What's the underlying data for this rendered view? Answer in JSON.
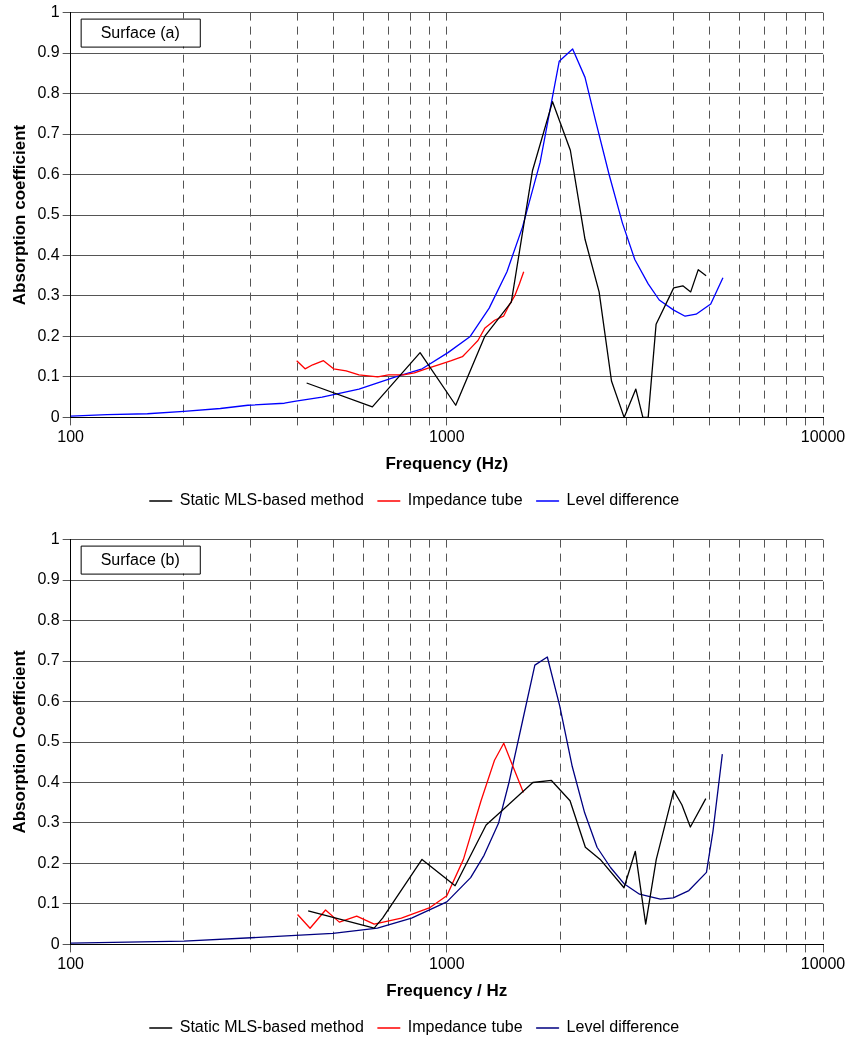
{
  "chart_data": [
    {
      "type": "line",
      "xlabel": "Frequency (Hz)",
      "ylabel": "Absorption coefficient",
      "annotations": [
        "Surface (a)"
      ],
      "log": "x",
      "grid": true,
      "legend": "bottom",
      "marker": "none",
      "line_style": "solid",
      "xlim": [
        100,
        10000
      ],
      "xticks": [
        100,
        {
          "value": 200,
          "label": null
        },
        {
          "value": 300,
          "label": null
        },
        {
          "value": 400,
          "label": null
        },
        {
          "value": 500,
          "label": null
        },
        {
          "value": 600,
          "label": null
        },
        {
          "value": 700,
          "label": null
        },
        {
          "value": 800,
          "label": null
        },
        {
          "value": 900,
          "label": null
        },
        1000,
        {
          "value": 2000,
          "label": null
        },
        {
          "value": 3000,
          "label": null
        },
        {
          "value": 4000,
          "label": null
        },
        {
          "value": 5000,
          "label": null
        },
        {
          "value": 6000,
          "label": null
        },
        {
          "value": 7000,
          "label": null
        },
        {
          "value": 8000,
          "label": null
        },
        {
          "value": 9000,
          "label": null
        },
        10000
      ],
      "ylim": [
        0,
        1
      ],
      "yticks": [
        0,
        0.1,
        0.2,
        0.3,
        0.4,
        0.5,
        0.6,
        0.7,
        0.8,
        0.9,
        1
      ],
      "series": [
        {
          "name": "Static MLS-based method",
          "color": "#000000",
          "x": [
            424,
            634,
            849,
            1056,
            1261,
            1484,
            1690,
            1910,
            2130,
            2330,
            2540,
            2740,
            2960,
            3180,
            3320,
            3430,
            3600,
            4010,
            4240,
            4450,
            4660,
            4890
          ],
          "values": [
            0.085,
            0.026,
            0.16,
            0.03,
            0.2,
            0.285,
            0.61,
            0.78,
            0.66,
            0.44,
            0.31,
            0.09,
            0,
            0.07,
            0,
            0,
            0.23,
            0.32,
            0.325,
            0.31,
            0.365,
            0.35
          ]
        },
        {
          "name": "Impedance tube",
          "color": "#ff0000",
          "x": [
            399,
            420,
            440,
            470,
            500,
            540,
            584,
            655,
            700,
            767,
            820,
            880,
            950,
            1028,
            1100,
            1154,
            1210,
            1261,
            1340,
            1415,
            1470,
            1515,
            1560,
            1601
          ],
          "values": [
            0.14,
            0.12,
            0.13,
            0.14,
            0.12,
            0.115,
            0.105,
            0.1,
            0.105,
            0.105,
            0.11,
            0.12,
            0.13,
            0.14,
            0.15,
            0.17,
            0.19,
            0.22,
            0.24,
            0.25,
            0.28,
            0.3,
            0.33,
            0.36
          ]
        },
        {
          "name": "Level difference",
          "color": "#0000ff",
          "x": [
            100,
            125,
            160,
            200,
            250,
            296,
            370,
            397,
            466,
            584,
            731,
            860,
            1007,
            1154,
            1296,
            1445,
            1589,
            1770,
            1990,
            2160,
            2330,
            2490,
            2700,
            2930,
            3160,
            3430,
            3670,
            4010,
            4300,
            4600,
            5030,
            5420
          ],
          "values": [
            0.003,
            0.007,
            0.009,
            0.015,
            0.022,
            0.03,
            0.035,
            0.04,
            0.05,
            0.07,
            0.1,
            0.12,
            0.16,
            0.2,
            0.27,
            0.36,
            0.47,
            0.63,
            0.88,
            0.91,
            0.84,
            0.73,
            0.6,
            0.48,
            0.39,
            0.33,
            0.29,
            0.265,
            0.25,
            0.255,
            0.28,
            0.345
          ]
        }
      ]
    },
    {
      "type": "line",
      "xlabel": "Frequency / Hz",
      "ylabel": "Absorption Coefficient",
      "annotations": [
        "Surface (b)"
      ],
      "log": "x",
      "grid": true,
      "legend": "bottom",
      "marker": "none",
      "line_style": "solid",
      "xlim": [
        100,
        10000
      ],
      "xticks": [
        100,
        {
          "value": 200,
          "label": null
        },
        {
          "value": 300,
          "label": null
        },
        {
          "value": 400,
          "label": null
        },
        {
          "value": 500,
          "label": null
        },
        {
          "value": 600,
          "label": null
        },
        {
          "value": 700,
          "label": null
        },
        {
          "value": 800,
          "label": null
        },
        {
          "value": 900,
          "label": null
        },
        1000,
        {
          "value": 2000,
          "label": null
        },
        {
          "value": 3000,
          "label": null
        },
        {
          "value": 4000,
          "label": null
        },
        {
          "value": 5000,
          "label": null
        },
        {
          "value": 6000,
          "label": null
        },
        {
          "value": 7000,
          "label": null
        },
        {
          "value": 8000,
          "label": null
        },
        {
          "value": 9000,
          "label": null
        },
        10000
      ],
      "ylim": [
        0,
        1
      ],
      "yticks": [
        0,
        0.1,
        0.2,
        0.3,
        0.4,
        0.5,
        0.6,
        0.7,
        0.8,
        0.9,
        1
      ],
      "series": [
        {
          "name": "Static MLS-based method",
          "color": "#000000",
          "x": [
            428,
            641,
            675,
            859,
            1052,
            1272,
            1693,
            1897,
            2126,
            2335,
            2557,
            2958,
            3170,
            3378,
            3604,
            4010,
            4215,
            4440,
            4880
          ],
          "values": [
            0.083,
            0.04,
            0.065,
            0.21,
            0.145,
            0.295,
            0.4,
            0.405,
            0.355,
            0.24,
            0.21,
            0.14,
            0.23,
            0.05,
            0.21,
            0.38,
            0.345,
            0.29,
            0.36
          ]
        },
        {
          "name": "Impedance tube",
          "color": "#ff0000",
          "x": [
            401,
            433,
            476,
            518,
            576,
            641,
            757,
            898,
            1000,
            1107,
            1233,
            1339,
            1417,
            1491,
            1598
          ],
          "values": [
            0.074,
            0.04,
            0.085,
            0.055,
            0.07,
            0.05,
            0.065,
            0.09,
            0.12,
            0.21,
            0.355,
            0.455,
            0.497,
            0.445,
            0.375
          ]
        },
        {
          "name": "Level difference",
          "color": "#000080",
          "x": [
            100,
            200,
            325,
            498,
            654,
            806,
            1000,
            1157,
            1256,
            1373,
            1463,
            1588,
            1714,
            1850,
            1995,
            2154,
            2325,
            2508,
            2724,
            2958,
            3253,
            3694,
            4000,
            4400,
            4900,
            5100,
            5400
          ],
          "values": [
            0.003,
            0.008,
            0.018,
            0.027,
            0.04,
            0.065,
            0.105,
            0.165,
            0.22,
            0.3,
            0.4,
            0.55,
            0.69,
            0.71,
            0.59,
            0.44,
            0.325,
            0.24,
            0.19,
            0.15,
            0.124,
            0.112,
            0.115,
            0.133,
            0.178,
            0.28,
            0.47
          ]
        }
      ]
    }
  ]
}
